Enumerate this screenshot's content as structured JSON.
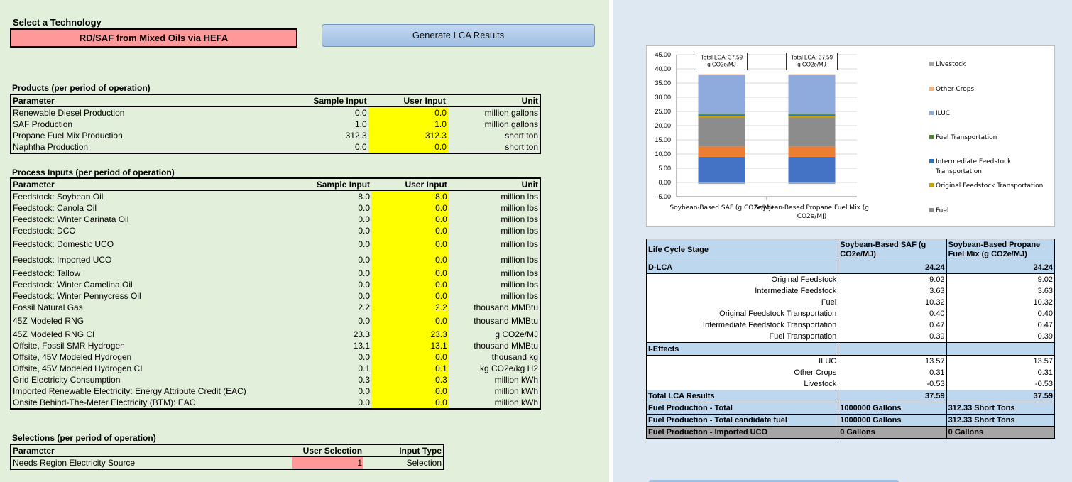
{
  "technology": {
    "label": "Select a Technology",
    "value": "RD/SAF from Mixed Oils via HEFA"
  },
  "generate_button": "Generate LCA Results",
  "products": {
    "title": "Products (per period of operation)",
    "headers": [
      "Parameter",
      "Sample Input",
      "User Input",
      "Unit"
    ],
    "rows": [
      [
        "Renewable Diesel Production",
        "0.0",
        "0.0",
        "million gallons"
      ],
      [
        "SAF Production",
        "1.0",
        "1.0",
        "million gallons"
      ],
      [
        "Propane Fuel Mix Production",
        "312.3",
        "312.3",
        "short ton"
      ],
      [
        "Naphtha Production",
        "0.0",
        "0.0",
        "short ton"
      ]
    ]
  },
  "process_inputs": {
    "title": "Process Inputs (per period of operation)",
    "headers": [
      "Parameter",
      "Sample Input",
      "User Input",
      "Unit"
    ],
    "rows": [
      [
        "Feedstock: Soybean Oil",
        "8.0",
        "8.0",
        "million lbs"
      ],
      [
        "Feedstock: Canola Oil",
        "0.0",
        "0.0",
        "million lbs"
      ],
      [
        "Feedstock: Winter Carinata Oil",
        "0.0",
        "0.0",
        "million lbs"
      ],
      [
        "Feedstock: DCO",
        "0.0",
        "0.0",
        "million lbs"
      ],
      [
        "Feedstock: Domestic UCO",
        "0.0",
        "0.0",
        "million lbs"
      ],
      [
        "Feedstock: Imported UCO",
        "0.0",
        "0.0",
        "million lbs"
      ],
      [
        "Feedstock: Tallow",
        "0.0",
        "0.0",
        "million lbs"
      ],
      [
        "Feedstock: Winter Camelina Oil",
        "0.0",
        "0.0",
        "million lbs"
      ],
      [
        "Feedstock: Winter Pennycress Oil",
        "0.0",
        "0.0",
        "million lbs"
      ],
      [
        "Fossil Natural Gas",
        "2.2",
        "2.2",
        "thousand MMBtu"
      ],
      [
        "45Z Modeled RNG",
        "0.0",
        "0.0",
        "thousand MMBtu"
      ],
      [
        "45Z Modeled RNG CI",
        "23.3",
        "23.3",
        "g CO2e/MJ"
      ],
      [
        "Offsite, Fossil SMR Hydrogen",
        "13.1",
        "13.1",
        "thousand MMBtu"
      ],
      [
        "Offsite, 45V Modeled Hydrogen",
        "0.0",
        "0.0",
        "thousand kg"
      ],
      [
        "Offsite, 45V Modeled Hydrogen CI",
        "0.1",
        "0.1",
        "kg CO2e/kg H2"
      ],
      [
        "Grid Electricity Consumption",
        "0.3",
        "0.3",
        "million kWh"
      ],
      [
        "Imported Renewable Electricity: Energy Attribute Credit (EAC)",
        "0.0",
        "0.0",
        "million kWh"
      ],
      [
        "Onsite Behind-The-Meter Electricity (BTM): EAC",
        "0.0",
        "0.0",
        "million kWh"
      ]
    ]
  },
  "selections": {
    "title": "Selections (per period of operation)",
    "headers": [
      "Parameter",
      "User Selection",
      "Input Type"
    ],
    "rows": [
      [
        "Needs Region Electricity Source",
        "1",
        "Selection"
      ]
    ]
  },
  "chart_data": {
    "type": "bar",
    "stacked": true,
    "categories": [
      "Soybean-Based SAF (g CO2e/MJ)",
      "Soybean-Based Propane Fuel Mix (g CO2e/MJ)"
    ],
    "series": [
      {
        "name": "Livestock",
        "color": "#a6a6a6",
        "values": [
          -0.53,
          -0.53
        ]
      },
      {
        "name": "Other Crops",
        "color": "#f4b183",
        "values": [
          0.31,
          0.31
        ]
      },
      {
        "name": "ILUC",
        "color": "#8faadc",
        "values": [
          13.57,
          13.57
        ]
      },
      {
        "name": "Fuel Transportation",
        "color": "#548235",
        "values": [
          0.39,
          0.39
        ]
      },
      {
        "name": "Intermediate Feedstock Transportation",
        "color": "#2e75b6",
        "values": [
          0.47,
          0.47
        ]
      },
      {
        "name": "Original Feedstock Transportation",
        "color": "#c9a000",
        "values": [
          0.4,
          0.4
        ]
      },
      {
        "name": "Fuel",
        "color": "#8c8c8c",
        "values": [
          10.32,
          10.32
        ]
      },
      {
        "name": "Intermediate Feedstock",
        "color": "#ed7d31",
        "values": [
          3.63,
          3.63
        ]
      },
      {
        "name": "Original Feedstock",
        "color": "#4472c4",
        "values": [
          9.02,
          9.02
        ]
      }
    ],
    "legend_items": [
      "Livestock",
      "Other Crops",
      "ILUC",
      "Fuel Transportation",
      "Intermediate Feedstock Transportation",
      "Original Feedstock Transportation",
      "Fuel"
    ],
    "annotations": [
      "Total LCA: 37.59 g CO2e/MJ",
      "Total LCA: 37.59 g CO2e/MJ"
    ],
    "yticks": [
      "45.00",
      "40.00",
      "35.00",
      "30.00",
      "25.00",
      "20.00",
      "15.00",
      "10.00",
      "5.00",
      "0.00",
      "-5.00"
    ],
    "ylim": [
      -5,
      45
    ],
    "legend_position": "right"
  },
  "lca_table": {
    "headers": [
      "Life Cycle Stage",
      "Soybean-Based SAF (g CO2e/MJ)",
      "Soybean-Based Propane Fuel Mix (g CO2e/MJ)"
    ],
    "dlca": {
      "label": "D-LCA",
      "v1": "24.24",
      "v2": "24.24"
    },
    "dlca_rows": [
      [
        "Original Feedstock",
        "9.02",
        "9.02"
      ],
      [
        "Intermediate Feedstock",
        "3.63",
        "3.63"
      ],
      [
        "Fuel",
        "10.32",
        "10.32"
      ],
      [
        "Original Feedstock Transportation",
        "0.40",
        "0.40"
      ],
      [
        "Intermediate Feedstock Transportation",
        "0.47",
        "0.47"
      ],
      [
        "Fuel Transportation",
        "0.39",
        "0.39"
      ]
    ],
    "ieffects": {
      "label": "I-Effects"
    },
    "ieffects_rows": [
      [
        "ILUC",
        "13.57",
        "13.57"
      ],
      [
        "Other Crops",
        "0.31",
        "0.31"
      ],
      [
        "Livestock",
        "-0.53",
        "-0.53"
      ]
    ],
    "total": {
      "label": "Total LCA Results",
      "v1": "37.59",
      "v2": "37.59"
    },
    "fuel_rows": [
      [
        "Fuel Production - Total",
        "1000000 Gallons",
        "312.33 Short Tons"
      ],
      [
        "Fuel Production - Total candidate fuel",
        "1000000 Gallons",
        "312.33 Short Tons"
      ],
      [
        "Fuel Production - Imported UCO",
        "0 Gallons",
        "0 Gallons"
      ]
    ]
  }
}
